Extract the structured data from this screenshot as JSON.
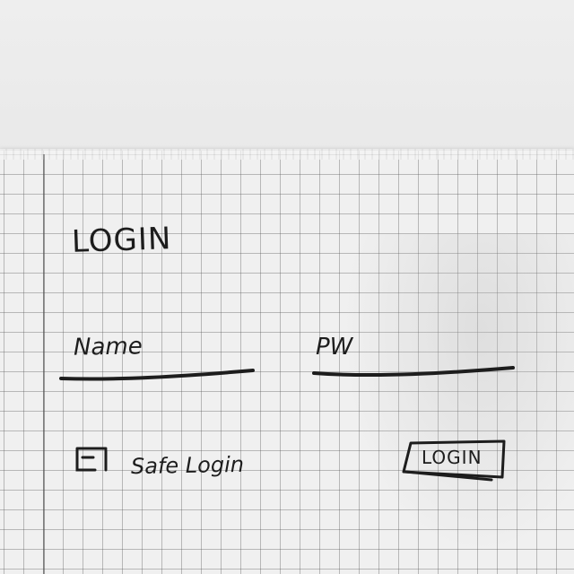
{
  "form": {
    "title": "LOGIN",
    "name_label": "Name",
    "password_label": "PW",
    "safe_login_label": "Safe Login",
    "login_button_label": "LOGIN"
  },
  "colors": {
    "ink": "#1d1d1d",
    "paper": "#f0f0f0",
    "grid": "#5a5a5a"
  }
}
